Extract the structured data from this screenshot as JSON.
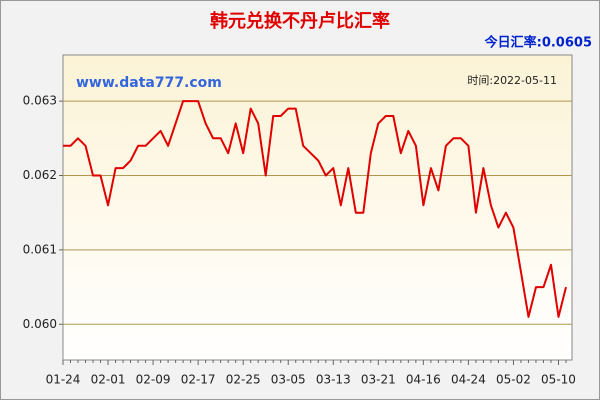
{
  "chart_data": {
    "type": "line",
    "title": "韩元兑换不丹卢比汇率",
    "current_rate": "今日汇率:0.0605",
    "watermark": "www.data777.com",
    "date_label": "时间:2022-05-11",
    "categories": [
      "01-24",
      null,
      null,
      null,
      null,
      null,
      "02-01",
      null,
      null,
      null,
      null,
      null,
      "02-09",
      null,
      null,
      null,
      null,
      null,
      "02-17",
      null,
      null,
      null,
      null,
      null,
      "02-25",
      null,
      null,
      null,
      null,
      null,
      "03-05",
      null,
      null,
      null,
      null,
      null,
      "03-13",
      null,
      null,
      null,
      null,
      null,
      "03-21",
      null,
      null,
      null,
      null,
      null,
      "04-16",
      null,
      null,
      null,
      null,
      null,
      "04-24",
      null,
      null,
      null,
      null,
      null,
      "05-02",
      null,
      null,
      null,
      null,
      null,
      "05-10",
      null
    ],
    "series": [
      {
        "color": "#e00000",
        "values": [
          0.0624,
          0.0624,
          0.0625,
          0.0624,
          0.062,
          0.062,
          0.0616,
          0.0621,
          0.0621,
          0.0622,
          0.0624,
          0.0624,
          0.0625,
          0.0626,
          0.0624,
          0.0627,
          0.063,
          0.063,
          0.063,
          0.0627,
          0.0625,
          0.0625,
          0.0623,
          0.0627,
          0.0623,
          0.0629,
          0.0627,
          0.062,
          0.0628,
          0.0628,
          0.0629,
          0.0629,
          0.0624,
          0.0623,
          0.0622,
          0.062,
          0.0621,
          0.0616,
          0.0621,
          0.0615,
          0.0615,
          0.0623,
          0.0627,
          0.0628,
          0.0628,
          0.0623,
          0.0626,
          0.0624,
          0.0616,
          0.0621,
          0.0618,
          0.0624,
          0.0625,
          0.0625,
          0.0624,
          0.0615,
          0.0621,
          0.0616,
          0.0613,
          0.0615,
          0.0613,
          0.0607,
          0.0601,
          0.0605,
          0.0605,
          0.0608,
          0.0601,
          0.0605
        ]
      }
    ],
    "ylim": [
      0.05952,
      0.06362
    ],
    "yticks": [
      {
        "value": 0.06,
        "label": "0.060"
      },
      0.061,
      0.062,
      0.063
    ],
    "grid": true
  }
}
